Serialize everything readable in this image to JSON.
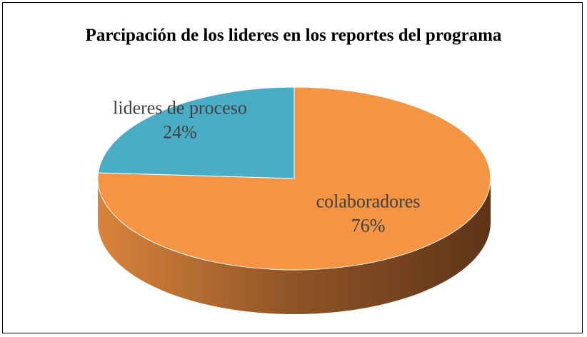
{
  "chart_data": {
    "type": "pie",
    "title": "Parcipación de los lideres en los reportes del programa",
    "categories": [
      "colaboradores",
      "lideres de proceso"
    ],
    "values": [
      76,
      24
    ],
    "value_labels": [
      "76%",
      "24%"
    ],
    "colors": [
      "#f39544",
      "#4bacc6"
    ]
  }
}
